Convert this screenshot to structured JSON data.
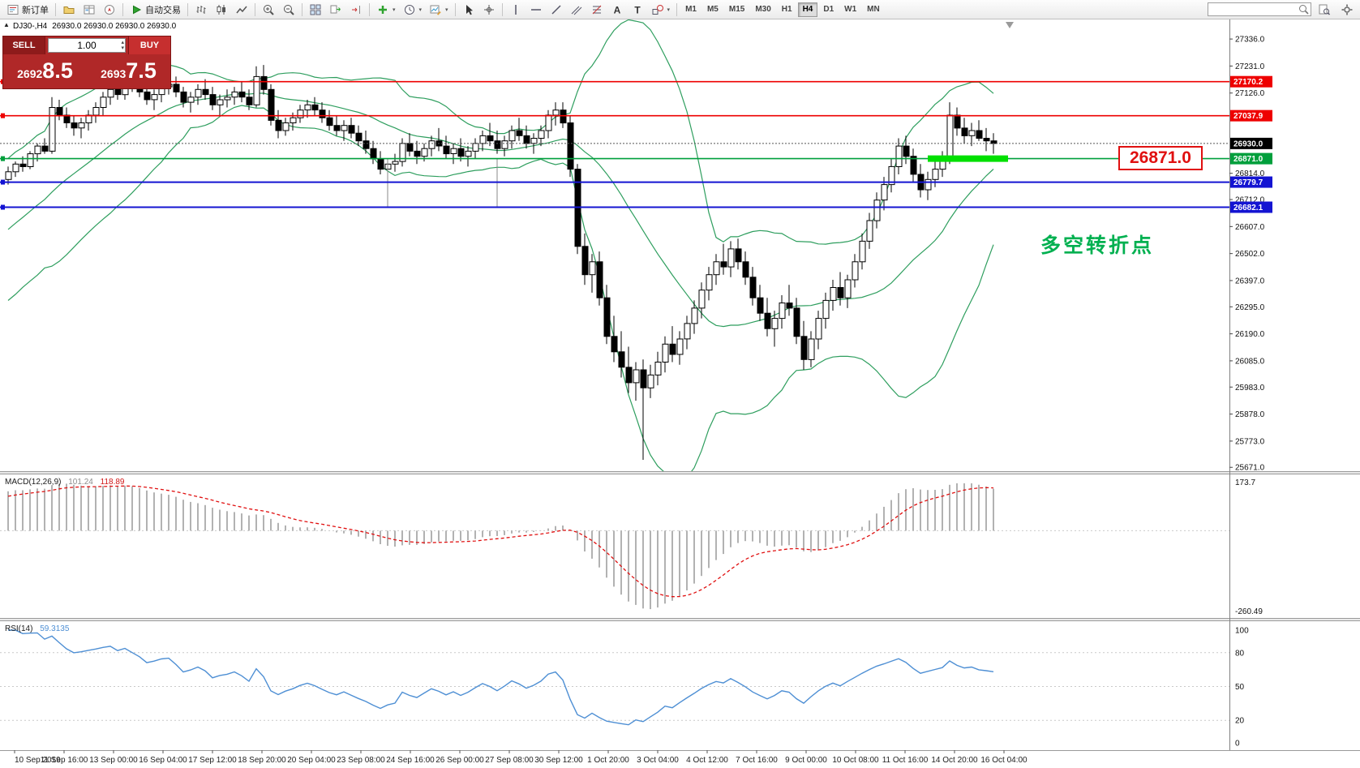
{
  "toolbar": {
    "new_order": "新订单",
    "autotrade": "自动交易",
    "timeframes": [
      "M1",
      "M5",
      "M15",
      "M30",
      "H1",
      "H4",
      "D1",
      "W1",
      "MN"
    ],
    "active_timeframe": "H4",
    "search_value": ""
  },
  "symbol": {
    "label": "DJ30-,H4",
    "ohlc": "26930.0 26930.0 26930.0 26930.0"
  },
  "one_click": {
    "sell_label": "SELL",
    "buy_label": "BUY",
    "sell_price": "26928.5",
    "buy_price": "26937.5",
    "volume": "1.00"
  },
  "annotations": {
    "price_callout": "26871.0",
    "turning_point": "多空转折点"
  },
  "chart_data": {
    "type": "candlestick",
    "symbol": "DJ30-",
    "timeframe": "H4",
    "title": "DJ30-,H4",
    "y_axis_ticks": [
      "27336.0",
      "27231.0",
      "27126.0",
      "27021.0",
      "26916.0",
      "26814.0",
      "26712.0",
      "26607.0",
      "26502.0",
      "26397.0",
      "26295.0",
      "26190.0",
      "26085.0",
      "25983.0",
      "25878.0",
      "25773.0",
      "25671.0"
    ],
    "x_axis_labels": [
      "10 Sep 2019",
      "11 Sep 16:00",
      "13 Sep 00:00",
      "16 Sep 04:00",
      "17 Sep 12:00",
      "18 Sep 20:00",
      "20 Sep 04:00",
      "23 Sep 08:00",
      "24 Sep 16:00",
      "26 Sep 00:00",
      "27 Sep 08:00",
      "30 Sep 12:00",
      "1 Oct 20:00",
      "3 Oct 04:00",
      "4 Oct 12:00",
      "7 Oct 16:00",
      "9 Oct 00:00",
      "10 Oct 08:00",
      "11 Oct 16:00",
      "14 Oct 20:00",
      "16 Oct 04:00"
    ],
    "candles": [
      [
        26790,
        26840,
        26770,
        26820
      ],
      [
        26820,
        26860,
        26800,
        26850
      ],
      [
        26850,
        26880,
        26820,
        26840
      ],
      [
        26840,
        26900,
        26830,
        26890
      ],
      [
        26890,
        26930,
        26860,
        26920
      ],
      [
        26920,
        26950,
        26890,
        26900
      ],
      [
        26900,
        27110,
        26890,
        27070
      ],
      [
        27070,
        27100,
        27020,
        27040
      ],
      [
        27040,
        27070,
        26990,
        27010
      ],
      [
        27010,
        27040,
        26960,
        26990
      ],
      [
        26990,
        27030,
        26950,
        27010
      ],
      [
        27010,
        27060,
        26980,
        27040
      ],
      [
        27040,
        27090,
        27010,
        27070
      ],
      [
        27070,
        27130,
        27040,
        27110
      ],
      [
        27110,
        27160,
        27080,
        27140
      ],
      [
        27140,
        27190,
        27100,
        27120
      ],
      [
        27120,
        27200,
        27100,
        27170
      ],
      [
        27170,
        27210,
        27130,
        27150
      ],
      [
        27150,
        27190,
        27110,
        27130
      ],
      [
        27130,
        27160,
        27080,
        27100
      ],
      [
        27100,
        27140,
        27060,
        27120
      ],
      [
        27120,
        27170,
        27090,
        27150
      ],
      [
        27150,
        27200,
        27120,
        27160
      ],
      [
        27160,
        27190,
        27110,
        27130
      ],
      [
        27130,
        27150,
        27070,
        27090
      ],
      [
        27090,
        27130,
        27050,
        27110
      ],
      [
        27110,
        27160,
        27080,
        27140
      ],
      [
        27140,
        27180,
        27100,
        27120
      ],
      [
        27120,
        27150,
        27060,
        27080
      ],
      [
        27080,
        27120,
        27040,
        27100
      ],
      [
        27100,
        27140,
        27070,
        27110
      ],
      [
        27110,
        27150,
        27080,
        27130
      ],
      [
        27130,
        27170,
        27090,
        27110
      ],
      [
        27110,
        27140,
        27060,
        27080
      ],
      [
        27080,
        27230,
        27070,
        27190
      ],
      [
        27190,
        27235,
        27120,
        27140
      ],
      [
        27140,
        27160,
        27000,
        27020
      ],
      [
        27020,
        27060,
        26950,
        26980
      ],
      [
        26980,
        27030,
        26960,
        27010
      ],
      [
        27010,
        27050,
        26980,
        27030
      ],
      [
        27030,
        27080,
        27010,
        27060
      ],
      [
        27060,
        27100,
        27030,
        27080
      ],
      [
        27080,
        27110,
        27040,
        27060
      ],
      [
        27060,
        27090,
        27010,
        27030
      ],
      [
        27030,
        27060,
        26980,
        27000
      ],
      [
        27000,
        27040,
        26960,
        26980
      ],
      [
        26980,
        27020,
        26940,
        27000
      ],
      [
        27000,
        27030,
        26950,
        26970
      ],
      [
        26970,
        27000,
        26920,
        26940
      ],
      [
        26940,
        26980,
        26890,
        26910
      ],
      [
        26910,
        26940,
        26850,
        26870
      ],
      [
        26870,
        26900,
        26810,
        26830
      ],
      [
        26830,
        26870,
        26790,
        26850
      ],
      [
        26850,
        26890,
        26820,
        26860
      ],
      [
        26860,
        26950,
        26840,
        26930
      ],
      [
        26930,
        26970,
        26880,
        26900
      ],
      [
        26900,
        26940,
        26850,
        26880
      ],
      [
        26880,
        26930,
        26860,
        26910
      ],
      [
        26910,
        26960,
        26880,
        26940
      ],
      [
        26940,
        26990,
        26900,
        26920
      ],
      [
        26920,
        26960,
        26870,
        26890
      ],
      [
        26890,
        26930,
        26850,
        26910
      ],
      [
        26910,
        26950,
        26860,
        26880
      ],
      [
        26880,
        26920,
        26840,
        26900
      ],
      [
        26900,
        26950,
        26870,
        26930
      ],
      [
        26930,
        26980,
        26900,
        26960
      ],
      [
        26960,
        27010,
        26920,
        26940
      ],
      [
        26940,
        26980,
        26890,
        26910
      ],
      [
        26910,
        26960,
        26880,
        26940
      ],
      [
        26940,
        27000,
        26910,
        26980
      ],
      [
        26980,
        27030,
        26940,
        26960
      ],
      [
        26960,
        27000,
        26910,
        26930
      ],
      [
        26930,
        26970,
        26890,
        26950
      ],
      [
        26950,
        27000,
        26920,
        26980
      ],
      [
        26980,
        27060,
        26950,
        27040
      ],
      [
        27040,
        27090,
        27000,
        27060
      ],
      [
        27060,
        27090,
        26990,
        27010
      ],
      [
        27010,
        27040,
        26800,
        26830
      ],
      [
        26830,
        26850,
        26500,
        26530
      ],
      [
        26530,
        26580,
        26380,
        26420
      ],
      [
        26420,
        26500,
        26350,
        26470
      ],
      [
        26470,
        26510,
        26300,
        26330
      ],
      [
        26330,
        26380,
        26150,
        26180
      ],
      [
        26180,
        26260,
        26080,
        26120
      ],
      [
        26120,
        26200,
        26020,
        26060
      ],
      [
        26060,
        26140,
        25960,
        26000
      ],
      [
        26000,
        26080,
        25930,
        26050
      ],
      [
        26050,
        26090,
        25700,
        25980
      ],
      [
        25980,
        26070,
        25940,
        26030
      ],
      [
        26030,
        26120,
        25990,
        26080
      ],
      [
        26080,
        26180,
        26040,
        26150
      ],
      [
        26150,
        26220,
        26080,
        26110
      ],
      [
        26110,
        26200,
        26070,
        26170
      ],
      [
        26170,
        26260,
        26130,
        26230
      ],
      [
        26230,
        26320,
        26190,
        26290
      ],
      [
        26290,
        26390,
        26250,
        26360
      ],
      [
        26360,
        26450,
        26320,
        26420
      ],
      [
        26420,
        26500,
        26380,
        26470
      ],
      [
        26470,
        26540,
        26420,
        26450
      ],
      [
        26450,
        26550,
        26410,
        26520
      ],
      [
        26520,
        26560,
        26440,
        26470
      ],
      [
        26470,
        26510,
        26380,
        26410
      ],
      [
        26410,
        26450,
        26300,
        26330
      ],
      [
        26330,
        26380,
        26240,
        26270
      ],
      [
        26270,
        26330,
        26180,
        26210
      ],
      [
        26210,
        26280,
        26140,
        26250
      ],
      [
        26250,
        26340,
        26210,
        26310
      ],
      [
        26310,
        26380,
        26260,
        26290
      ],
      [
        26290,
        26330,
        26150,
        26180
      ],
      [
        26180,
        26240,
        26050,
        26090
      ],
      [
        26090,
        26200,
        26060,
        26170
      ],
      [
        26170,
        26280,
        26130,
        26250
      ],
      [
        26250,
        26350,
        26210,
        26320
      ],
      [
        26320,
        26400,
        26280,
        26370
      ],
      [
        26370,
        26430,
        26300,
        26330
      ],
      [
        26330,
        26420,
        26290,
        26400
      ],
      [
        26400,
        26500,
        26370,
        26470
      ],
      [
        26470,
        26580,
        26440,
        26550
      ],
      [
        26550,
        26660,
        26520,
        26630
      ],
      [
        26630,
        26740,
        26600,
        26710
      ],
      [
        26710,
        26800,
        26670,
        26770
      ],
      [
        26770,
        26870,
        26740,
        26840
      ],
      [
        26840,
        26950,
        26810,
        26920
      ],
      [
        26920,
        26960,
        26850,
        26880
      ],
      [
        26880,
        26910,
        26780,
        26810
      ],
      [
        26810,
        26850,
        26720,
        26750
      ],
      [
        26750,
        26820,
        26710,
        26790
      ],
      [
        26790,
        26860,
        26760,
        26830
      ],
      [
        26830,
        26900,
        26800,
        26870
      ],
      [
        26870,
        27090,
        26850,
        27040
      ],
      [
        27040,
        27070,
        26960,
        26990
      ],
      [
        26990,
        27030,
        26930,
        26960
      ],
      [
        26960,
        27010,
        26920,
        26980
      ],
      [
        26980,
        27020,
        26940,
        26950
      ],
      [
        26950,
        26990,
        26900,
        26940
      ],
      [
        26940,
        26970,
        26890,
        26930
      ]
    ],
    "indicator_warmup_candles": [
      [
        26200,
        26254,
        26146,
        26224
      ],
      [
        26224,
        26278,
        26170,
        26248
      ],
      [
        26248,
        26302,
        26194,
        26272
      ],
      [
        26272,
        26326,
        26218,
        26296
      ],
      [
        26296,
        26350,
        26242,
        26320
      ],
      [
        26320,
        26374,
        26266,
        26344
      ],
      [
        26344,
        26398,
        26290,
        26368
      ],
      [
        26368,
        26422,
        26314,
        26392
      ],
      [
        26392,
        26446,
        26338,
        26416
      ],
      [
        26416,
        26470,
        26362,
        26440
      ],
      [
        26440,
        26494,
        26386,
        26464
      ],
      [
        26464,
        26518,
        26410,
        26488
      ],
      [
        26488,
        26542,
        26434,
        26512
      ],
      [
        26512,
        26566,
        26458,
        26536
      ],
      [
        26536,
        26590,
        26482,
        26560
      ],
      [
        26560,
        26614,
        26506,
        26584
      ],
      [
        26584,
        26638,
        26530,
        26608
      ],
      [
        26608,
        26662,
        26554,
        26632
      ],
      [
        26632,
        26686,
        26578,
        26656
      ],
      [
        26656,
        26710,
        26602,
        26680
      ],
      [
        26680,
        26734,
        26626,
        26704
      ],
      [
        26704,
        26758,
        26650,
        26728
      ],
      [
        26728,
        26782,
        26674,
        26752
      ],
      [
        26752,
        26806,
        26698,
        26776
      ],
      [
        26776,
        26830,
        26722,
        26800
      ]
    ],
    "hlines": [
      {
        "price": 27170.2,
        "label": "27170.2",
        "color": "#ee0000",
        "width": 1.6
      },
      {
        "price": 27037.9,
        "label": "27037.9",
        "color": "#ee0000",
        "width": 1.6
      },
      {
        "price": 26871.0,
        "label": "26871.0",
        "color": "#009f3c",
        "width": 1.6
      },
      {
        "price": 26779.7,
        "label": "26779.7",
        "color": "#1414d2",
        "width": 2
      },
      {
        "price": 26682.1,
        "label": "26682.1",
        "color": "#1414d2",
        "width": 2
      }
    ],
    "current_price": {
      "value": 26930.0,
      "label": "26930.0",
      "color": "#000000"
    },
    "highlight_segment": {
      "price": 26871.0,
      "bar_start": 126,
      "bar_end": 137,
      "color": "#00e000"
    },
    "vlines": [
      {
        "bar": 52,
        "price_top": 26871.0,
        "price_bottom": 26682.1
      },
      {
        "bar": 67,
        "price_top": 26871.0,
        "price_bottom": 26682.1
      }
    ],
    "colors": {
      "bull": "#ffffff",
      "bear": "#000000",
      "outline": "#000000",
      "bollinger": "#2e9e5e",
      "macd_hist": "#b2b2b2",
      "macd_signal": "#e01010",
      "rsi": "#4e8fd4",
      "grid": "#c9c9c9"
    },
    "indicators": {
      "bollinger": {
        "period": 20,
        "deviation": 2
      },
      "macd": {
        "name": "MACD(12,26,9)",
        "macd_value": "101.24",
        "signal_value": "118.89",
        "axis_top": "173.7",
        "axis_bottom": "-260.49"
      },
      "rsi": {
        "name": "RSI(14)",
        "value": "59.3135",
        "levels": [
          80,
          50,
          20
        ],
        "axis_ticks": [
          "100",
          "80",
          "50",
          "20",
          "0"
        ]
      }
    }
  }
}
